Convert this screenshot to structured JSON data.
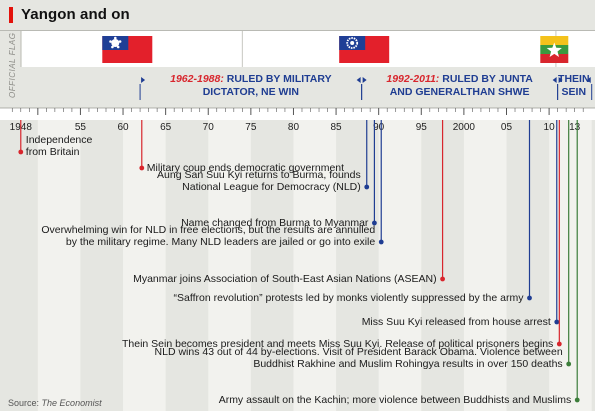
{
  "header": {
    "title": "Yangon and on"
  },
  "source": {
    "label": "Source:",
    "publication": "The Economist"
  },
  "chart_data": {
    "type": "timeline",
    "x_domain": [
      1946.5,
      2014.8
    ],
    "ticks": [
      {
        "x": 1948,
        "label": "1948"
      },
      {
        "x": 1955,
        "label": "55"
      },
      {
        "x": 1960,
        "label": "60"
      },
      {
        "x": 1965,
        "label": "65"
      },
      {
        "x": 1970,
        "label": "70"
      },
      {
        "x": 1975,
        "label": "75"
      },
      {
        "x": 1980,
        "label": "80"
      },
      {
        "x": 1985,
        "label": "85"
      },
      {
        "x": 1990,
        "label": "90"
      },
      {
        "x": 1995,
        "label": "95"
      },
      {
        "x": 2000,
        "label": "2000"
      },
      {
        "x": 2005,
        "label": "05"
      },
      {
        "x": 2010,
        "label": "10"
      },
      {
        "x": 2013,
        "label": "13"
      }
    ],
    "flags_label": "OFFICIAL FLAG",
    "flags": [
      {
        "name": "flag-1948",
        "start": 1948,
        "style": "blue-star",
        "center": 1960.5
      },
      {
        "name": "flag-1974",
        "start": 1974,
        "style": "cog-rice",
        "center": 1988.3
      },
      {
        "name": "flag-2010",
        "start": 2010.8,
        "style": "tricolour-star",
        "center": 2011.9
      }
    ],
    "periods": [
      {
        "start": 1962,
        "end": 1988,
        "years": "1962-1988:",
        "line1_rest": " RULED BY MILITARY",
        "line2": "DICTATOR, NE WIN"
      },
      {
        "start": 1988,
        "end": 2011,
        "years": "1992-2011:",
        "line1_rest": " RULED BY JUNTA",
        "line2": "AND GENERALTHAN SHWE"
      },
      {
        "start": 2011,
        "end": 2015,
        "years": "",
        "line1_rest": "THEIN",
        "line2": "SEIN"
      }
    ],
    "events": [
      {
        "year": 1948.0,
        "color": "red",
        "lines": [
          "Independence",
          "from Britain"
        ],
        "side": "right"
      },
      {
        "year": 1962.2,
        "color": "red",
        "lines": [
          "Military coup ends democratic government"
        ],
        "side": "right"
      },
      {
        "year": 1988.6,
        "color": "blue",
        "lines": [
          "Aung San Suu Kyi returns to Burma, founds",
          "National League for Democracy (NLD)"
        ],
        "side": "left"
      },
      {
        "year": 1989.5,
        "color": "blue",
        "lines": [
          "Name changed from Burma to Myanmar"
        ],
        "side": "left"
      },
      {
        "year": 1990.3,
        "color": "blue",
        "lines": [
          "Overwhelming win for NLD in free elections, but the results are annulled",
          "by the military regime. Many NLD leaders are jailed or go into exile"
        ],
        "side": "left"
      },
      {
        "year": 1997.5,
        "color": "red",
        "lines": [
          "Myanmar joins Association of South-East Asian Nations (ASEAN)"
        ],
        "side": "left"
      },
      {
        "year": 2007.7,
        "color": "blue",
        "lines": [
          "“Saffron revolution” protests led by monks violently suppressed by the army"
        ],
        "side": "left"
      },
      {
        "year": 2010.9,
        "color": "blue",
        "lines": [
          "Miss Suu Kyi released from house arrest"
        ],
        "side": "left"
      },
      {
        "year": 2011.2,
        "color": "red",
        "lines": [
          "Thein Sein becomes president and meets Miss Suu Kyi. Release of political prisoners begins"
        ],
        "side": "left"
      },
      {
        "year": 2012.3,
        "color": "green",
        "lines": [
          "NLD wins 43 out of 44 by-elections. Visit of President Barack Obama. Violence between",
          "Buddhist Rakhine and Muslim Rohingya results in over 150 deaths"
        ],
        "side": "left"
      },
      {
        "year": 2013.3,
        "color": "green",
        "lines": [
          "Army assault on the Kachin; more violence between Buddhists and Muslims"
        ],
        "side": "left"
      }
    ]
  }
}
